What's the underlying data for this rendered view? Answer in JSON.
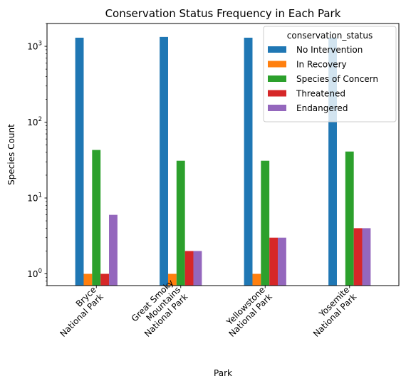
{
  "chart_data": {
    "type": "bar",
    "title": "Conservation Status Frequency in Each Park",
    "xlabel": "Park",
    "ylabel": "Species Count",
    "yscale": "log",
    "ylim": [
      0.7,
      2000
    ],
    "y_ticks": [
      {
        "value": 1,
        "base": "10",
        "exp": "0"
      },
      {
        "value": 10,
        "base": "10",
        "exp": "1"
      },
      {
        "value": 100,
        "base": "10",
        "exp": "2"
      },
      {
        "value": 1000,
        "base": "10",
        "exp": "3"
      }
    ],
    "categories": [
      [
        "Bryce",
        "National Park"
      ],
      [
        "Great Smoky",
        "Mountains",
        "National Park"
      ],
      [
        "Yellowstone",
        "National Park"
      ],
      [
        "Yosemite",
        "National Park"
      ]
    ],
    "legend": {
      "title": "conservation_status",
      "placement": "top-right"
    },
    "series": [
      {
        "name": "No Intervention",
        "color": "#1f77b4",
        "values": [
          1300,
          1330,
          1300,
          1300
        ]
      },
      {
        "name": "In Recovery",
        "color": "#ff7f0e",
        "values": [
          1,
          1,
          1,
          null
        ]
      },
      {
        "name": "Species of Concern",
        "color": "#2ca02c",
        "values": [
          43,
          31,
          31,
          41
        ]
      },
      {
        "name": "Threatened",
        "color": "#d62728",
        "values": [
          1,
          2,
          3,
          4
        ]
      },
      {
        "name": "Endangered",
        "color": "#9467bd",
        "values": [
          6,
          2,
          3,
          4
        ]
      }
    ]
  }
}
